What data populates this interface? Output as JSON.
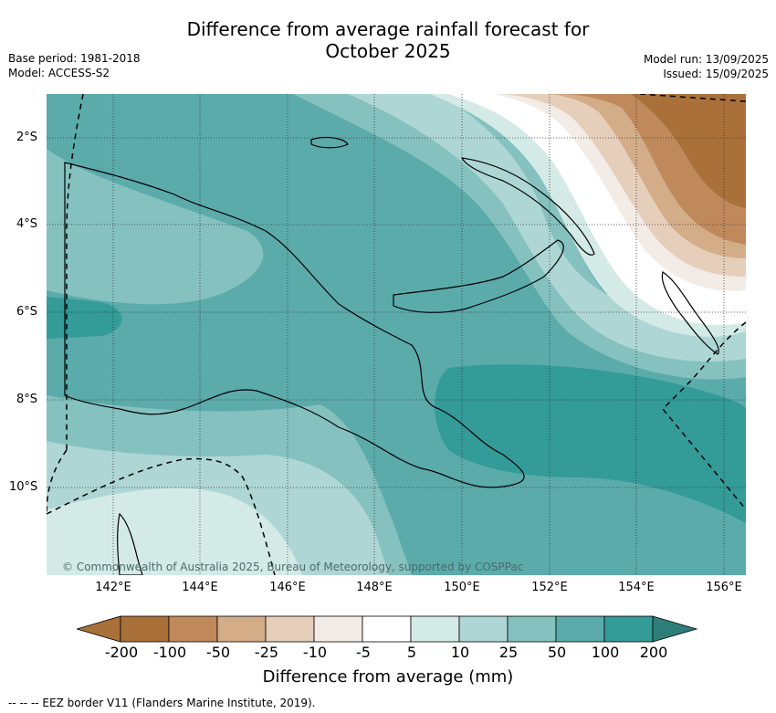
{
  "title_line1": "Difference from average rainfall forecast for",
  "title_line2": "October 2025",
  "meta_left": [
    "Base period: 1981-2018",
    "Model: ACCESS-S2"
  ],
  "meta_right": [
    "Model run: 13/09/2025",
    "Issued: 15/09/2025"
  ],
  "lat_ticks": [
    "2°S",
    "4°S",
    "6°S",
    "8°S",
    "10°S"
  ],
  "lon_ticks": [
    "142°E",
    "144°E",
    "146°E",
    "148°E",
    "150°E",
    "152°E",
    "154°E",
    "156°E"
  ],
  "credit": "© Commonwealth of Australia 2025, Bureau of Meteorology, supported by COSPPac",
  "colorbar": {
    "labels": [
      "-200",
      "-100",
      "-50",
      "-25",
      "-10",
      "-5",
      "5",
      "10",
      "25",
      "50",
      "100",
      "200"
    ],
    "colors": [
      "#a9703a",
      "#c0895c",
      "#d3ac88",
      "#e5cfba",
      "#f2ebe6",
      "#ffffff",
      "#d4eae7",
      "#aed6d4",
      "#84c1bf",
      "#5babab",
      "#339b98",
      "#2e7d79"
    ],
    "title": "Difference from average (mm)"
  },
  "eez_note": "--  --  -- EEZ border V11 (Flanders Marine Institute, 2019)."
}
